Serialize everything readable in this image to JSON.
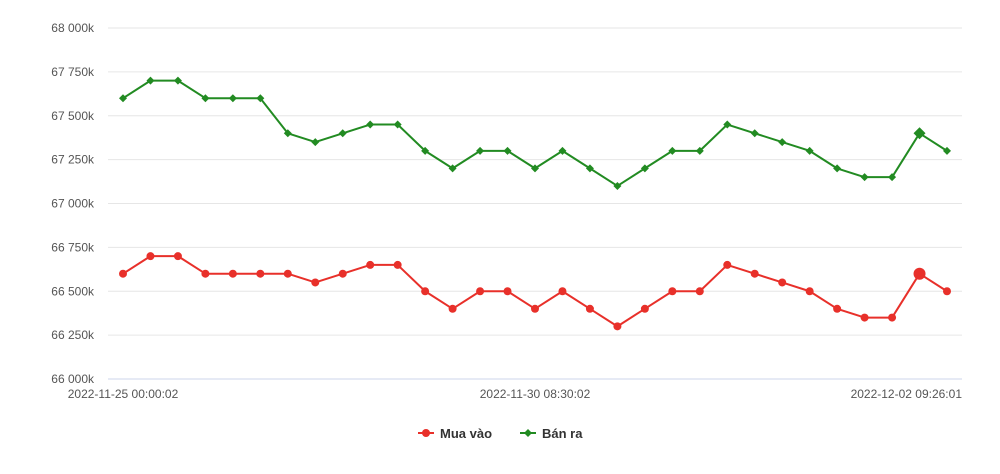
{
  "chart_data": {
    "type": "line",
    "title": "",
    "xlabel": "",
    "ylabel": "",
    "ylim": [
      66000,
      68000
    ],
    "yticks": [
      66000,
      66250,
      66500,
      66750,
      67000,
      67250,
      67500,
      67750,
      68000
    ],
    "ytick_labels": [
      "66 000k",
      "66 250k",
      "66 500k",
      "66 750k",
      "67 000k",
      "67 250k",
      "67 500k",
      "67 750k",
      "68 000k"
    ],
    "xtick_labels": [
      "2022-11-25 00:00:02",
      "2022-11-30 08:30:02",
      "2022-12-02 09:26:01"
    ],
    "grid": true,
    "legend_position": "bottom-center",
    "series": [
      {
        "name": "Mua vào",
        "color": "#e8302a",
        "marker": "circle",
        "values": [
          66600,
          66700,
          66700,
          66600,
          66600,
          66600,
          66600,
          66550,
          66600,
          66650,
          66650,
          66500,
          66400,
          66500,
          66500,
          66400,
          66500,
          66400,
          66300,
          66400,
          66500,
          66500,
          66650,
          66600,
          66550,
          66500,
          66400,
          66350,
          66350,
          66600,
          66500
        ]
      },
      {
        "name": "Bán ra",
        "color": "#228b22",
        "marker": "diamond",
        "values": [
          67600,
          67700,
          67700,
          67600,
          67600,
          67600,
          67400,
          67350,
          67400,
          67450,
          67450,
          67300,
          67200,
          67300,
          67300,
          67200,
          67300,
          67200,
          67100,
          67200,
          67300,
          67300,
          67450,
          67400,
          67350,
          67300,
          67200,
          67150,
          67150,
          67400,
          67300
        ]
      }
    ],
    "highlighted_index": 29
  }
}
